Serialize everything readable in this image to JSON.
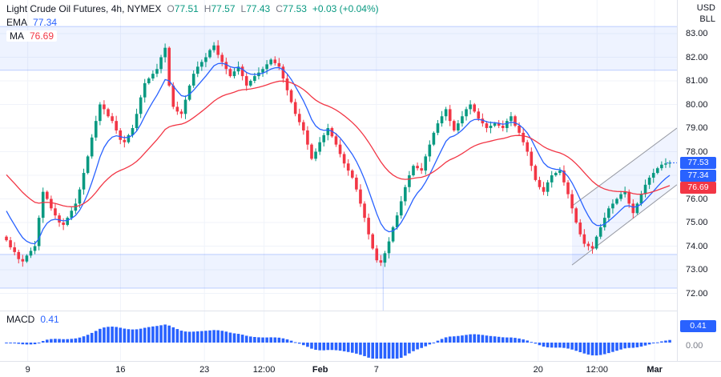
{
  "legend": {
    "title": "Light Crude Oil Futures, 4h, NYMEX",
    "o_label": "O",
    "o": "77.51",
    "h_label": "H",
    "h": "77.57",
    "l_label": "L",
    "l": "77.43",
    "c_label": "C",
    "c": "77.53",
    "change": "+0.03 (+0.04%)",
    "ema_label": "EMA",
    "ema_value": "77.34",
    "ma_label": "MA",
    "ma_value": "76.69",
    "macd_label": "MACD",
    "macd_value": "0.41"
  },
  "axis": {
    "currency": "USD",
    "unit": "BLL",
    "price_ticks": [
      "83.00",
      "82.00",
      "81.00",
      "80.00",
      "79.00",
      "78.00",
      "76.00",
      "75.00",
      "74.00",
      "73.00",
      "72.00"
    ],
    "badges": [
      {
        "text": "77.53",
        "color": "#2962ff"
      },
      {
        "text": "77.34",
        "color": "#2962ff"
      },
      {
        "text": "76.69",
        "color": "#f23645"
      }
    ],
    "macd_badge": {
      "text": "0.41",
      "color": "#2962ff"
    },
    "macd_zero_tick": "0.00"
  },
  "chart_data": [
    {
      "type": "candlestick",
      "title": "Light Crude Oil Futures",
      "interval": "4h",
      "exchange": "NYMEX",
      "unit": {
        "currency": "USD",
        "per": "BLL"
      },
      "current_bar": {
        "open": 77.51,
        "high": 77.57,
        "low": 77.43,
        "close": 77.53,
        "change": "+0.03 (+0.04%)"
      },
      "ylim": [
        71.3,
        84.4
      ],
      "y_ticks": [
        83,
        82,
        81,
        80,
        79,
        78,
        77,
        76,
        75,
        74,
        73,
        72
      ],
      "x_ticks": [
        {
          "label": "9",
          "pos": 0.041
        },
        {
          "label": "16",
          "pos": 0.178
        },
        {
          "label": "23",
          "pos": 0.302
        },
        {
          "label": "12:00",
          "pos": 0.39
        },
        {
          "label": "Feb",
          "pos": 0.473,
          "strong": true
        },
        {
          "label": "7",
          "pos": 0.556
        },
        {
          "label": "20",
          "pos": 0.795
        },
        {
          "label": "12:00",
          "pos": 0.882
        },
        {
          "label": "Mar",
          "pos": 0.967,
          "strong": true
        }
      ],
      "closes": [
        74.25,
        73.95,
        73.75,
        73.45,
        73.35,
        73.6,
        73.8,
        74.0,
        75.2,
        76.3,
        76.0,
        75.6,
        75.3,
        75.0,
        74.9,
        75.2,
        75.5,
        75.8,
        76.4,
        77.1,
        77.8,
        78.6,
        79.3,
        80.0,
        79.8,
        79.5,
        79.3,
        78.9,
        78.5,
        78.4,
        78.7,
        79.0,
        79.6,
        80.3,
        80.9,
        81.1,
        81.3,
        81.5,
        82.0,
        82.4,
        80.8,
        79.9,
        79.7,
        79.6,
        80.2,
        80.8,
        81.3,
        81.6,
        81.8,
        82.0,
        82.3,
        82.5,
        82.1,
        81.8,
        81.5,
        81.2,
        81.4,
        81.6,
        81.2,
        80.8,
        81.0,
        81.2,
        81.35,
        81.5,
        81.7,
        81.9,
        81.75,
        81.6,
        81.1,
        80.6,
        80.1,
        79.6,
        79.25,
        78.9,
        78.3,
        77.7,
        78.0,
        78.4,
        78.7,
        79.0,
        78.65,
        78.3,
        77.9,
        77.5,
        77.2,
        76.9,
        76.4,
        75.8,
        75.2,
        74.5,
        73.9,
        73.4,
        73.3,
        73.7,
        74.2,
        74.8,
        75.3,
        75.9,
        76.5,
        77.0,
        77.4,
        77.3,
        77.2,
        77.8,
        78.3,
        78.8,
        79.2,
        79.5,
        79.8,
        79.3,
        78.9,
        79.2,
        79.5,
        79.8,
        80.0,
        79.7,
        79.4,
        79.2,
        79.0,
        79.1,
        79.2,
        79.1,
        79.0,
        79.3,
        79.5,
        79.1,
        78.8,
        78.4,
        78.0,
        77.4,
        76.8,
        76.5,
        76.3,
        76.7,
        77.0,
        77.1,
        77.2,
        76.7,
        76.2,
        75.6,
        75.0,
        74.5,
        74.1,
        74.0,
        73.9,
        74.4,
        74.8,
        75.2,
        75.6,
        75.8,
        76.0,
        76.2,
        76.3,
        75.8,
        75.4,
        75.8,
        76.2,
        76.6,
        76.9,
        77.1,
        77.3,
        77.45,
        77.5,
        77.53
      ],
      "indicators": [
        {
          "name": "EMA",
          "current": 77.34,
          "color": "#2962ff"
        },
        {
          "name": "MA",
          "current": 76.69,
          "color": "#f23645"
        }
      ],
      "zones": [
        {
          "price_top": 83.3,
          "price_bottom": 81.45
        },
        {
          "price_top": 73.65,
          "price_bottom": 72.22,
          "anchor_x": 0.566
        }
      ],
      "channel": {
        "x_start": 0.845,
        "x_end": 1.0,
        "lower_start": 73.2,
        "lower_end": 76.6,
        "upper_start": 75.7,
        "upper_end": 79.0
      },
      "colors": {
        "up": "#089981",
        "down": "#f23645",
        "grid": "#f0f3fa",
        "zone_fill": "rgba(41,98,255,0.08)",
        "zone_edge": "rgba(41,98,255,0.28)"
      }
    },
    {
      "type": "bar",
      "name": "MACD",
      "current": 0.41,
      "color": "#2962ff",
      "derivation": {
        "fast_alpha": 0.15,
        "slow_alpha": 0.065
      }
    }
  ]
}
